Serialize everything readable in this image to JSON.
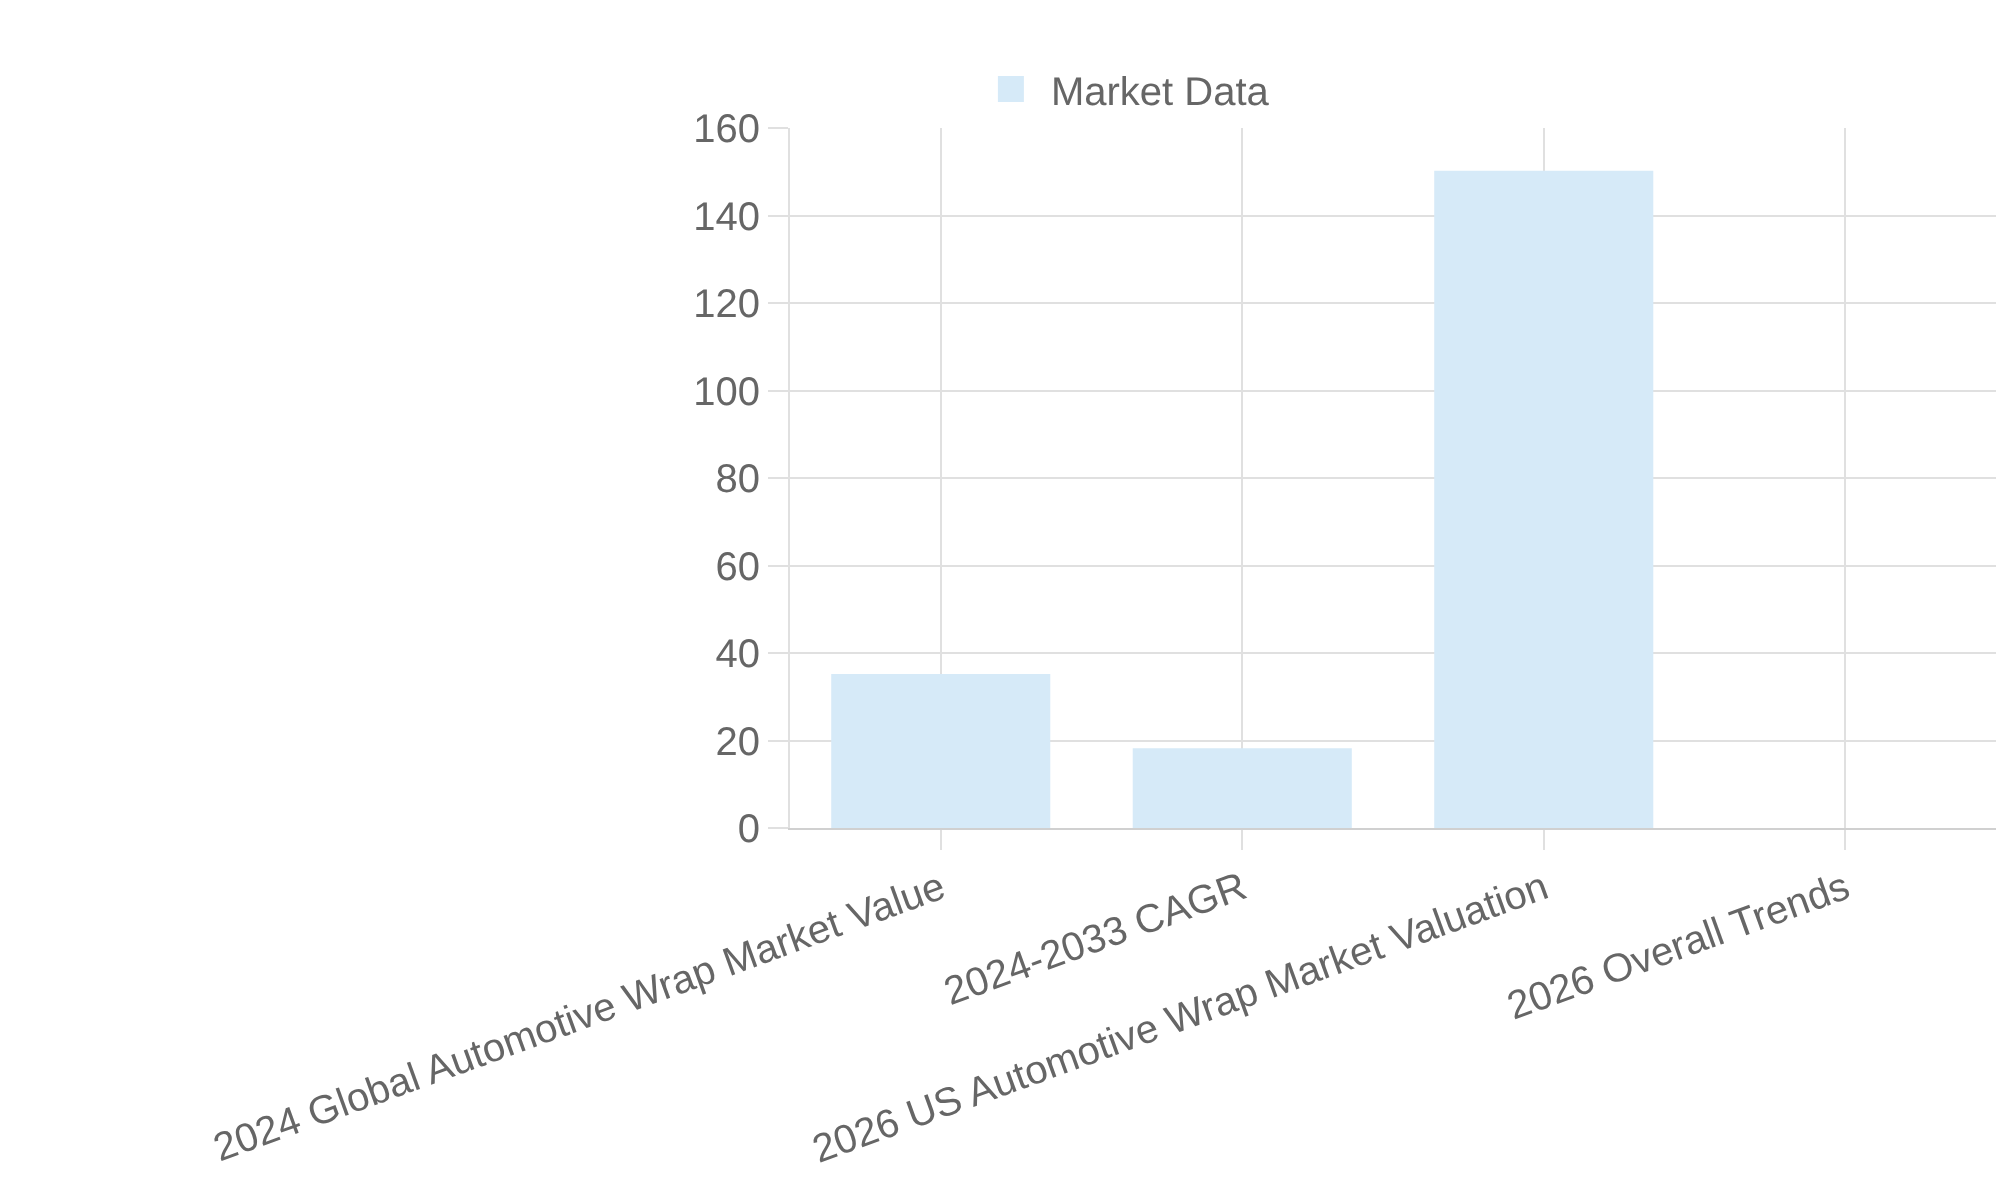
{
  "chart_data": {
    "type": "bar",
    "categories": [
      "2024 Global Automotive Wrap Market Value",
      "2024-2033 CAGR",
      "2026 US Automotive Wrap Market Valuation",
      "2026 Overall Trends"
    ],
    "series": [
      {
        "name": "Market Data",
        "color": "#d6eaf8",
        "values": [
          35,
          18,
          150,
          null
        ]
      }
    ],
    "ylim": [
      0,
      160
    ],
    "yticks": [
      0,
      20,
      40,
      60,
      80,
      100,
      120,
      140,
      160
    ],
    "grid": true,
    "legend": "top"
  }
}
